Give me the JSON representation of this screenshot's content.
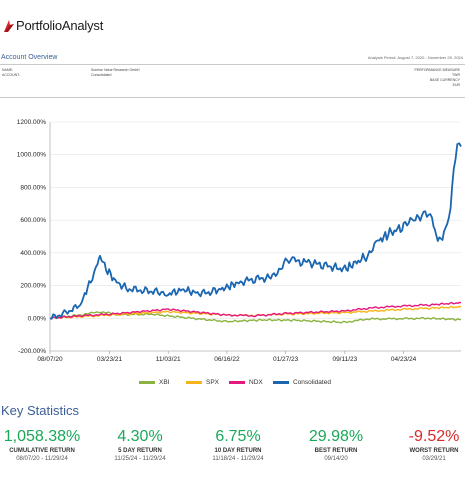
{
  "header": {
    "brand": "PortfolioAnalyst"
  },
  "overview": {
    "title": "Account Overview",
    "analysis_period": "Analysis Period: August 7, 2020 - November 29, 2024"
  },
  "account_info": {
    "name_label": "NAME:",
    "name_value": "Sunrise Value Research GmbH",
    "account_label": "ACCOUNT:",
    "account_value": "Consolidated",
    "measure_label": "PERFORMANCE MEASURE",
    "measure_value": "TWR",
    "currency_label": "BASE CURRENCY",
    "currency_value": "EUR"
  },
  "colors": {
    "XBI": "#8ab33f",
    "SPX": "#f6b41a",
    "NDX": "#e6177d",
    "Consolidated": "#1a66b0",
    "positive": "#1aa85a",
    "negative": "#d92b2b",
    "accent": "#3b5e95"
  },
  "chart_data": {
    "type": "line",
    "x_ticks": [
      "08/07/20",
      "03/23/21",
      "11/03/21",
      "06/16/22",
      "01/27/23",
      "09/11/23",
      "04/23/24"
    ],
    "y_ticks": [
      "1200.00%",
      "1000.00%",
      "800.00%",
      "600.00%",
      "400.00%",
      "200.00%",
      "0.00%",
      "-200.00%"
    ],
    "ylim": [
      -200,
      1200
    ],
    "x_range": [
      "2020-08-07",
      "2024-11-29"
    ],
    "grid": "horizontal",
    "legend_position": "bottom",
    "series": [
      {
        "name": "XBI",
        "x": [
          "2020-08-07",
          "2020-12-01",
          "2021-02-15",
          "2021-05-01",
          "2021-09-01",
          "2022-01-01",
          "2022-06-16",
          "2022-11-01",
          "2023-03-01",
          "2023-09-11",
          "2023-12-01",
          "2024-04-23",
          "2024-08-01",
          "2024-11-29"
        ],
        "values": [
          0,
          20,
          40,
          22,
          25,
          5,
          -20,
          -10,
          -12,
          -25,
          -5,
          -2,
          0,
          -8
        ]
      },
      {
        "name": "SPX",
        "x": [
          "2020-08-07",
          "2020-12-01",
          "2021-03-23",
          "2021-11-03",
          "2022-06-16",
          "2022-10-01",
          "2023-01-27",
          "2023-09-11",
          "2024-01-01",
          "2024-04-23",
          "2024-08-01",
          "2024-11-29"
        ],
        "values": [
          0,
          10,
          20,
          40,
          20,
          18,
          25,
          35,
          45,
          55,
          62,
          70
        ]
      },
      {
        "name": "NDX",
        "x": [
          "2020-08-07",
          "2020-12-01",
          "2021-03-23",
          "2021-11-03",
          "2022-06-16",
          "2022-10-01",
          "2023-01-27",
          "2023-09-11",
          "2024-01-01",
          "2024-04-23",
          "2024-08-01",
          "2024-11-29"
        ],
        "values": [
          0,
          15,
          25,
          55,
          20,
          15,
          30,
          45,
          65,
          75,
          82,
          95
        ]
      },
      {
        "name": "Consolidated",
        "x": [
          "2020-08-07",
          "2020-10-01",
          "2020-12-01",
          "2021-01-10",
          "2021-02-05",
          "2021-02-15",
          "2021-03-10",
          "2021-04-20",
          "2021-06-01",
          "2021-08-01",
          "2021-10-01",
          "2021-11-03",
          "2022-01-01",
          "2022-03-01",
          "2022-05-01",
          "2022-06-16",
          "2022-08-01",
          "2022-10-01",
          "2022-12-01",
          "2023-01-27",
          "2023-03-01",
          "2023-05-01",
          "2023-07-01",
          "2023-09-11",
          "2023-10-15",
          "2023-12-01",
          "2024-01-15",
          "2024-03-01",
          "2024-04-23",
          "2024-06-01",
          "2024-07-15",
          "2024-08-10",
          "2024-09-01",
          "2024-10-01",
          "2024-10-20",
          "2024-11-01",
          "2024-11-15",
          "2024-11-29"
        ],
        "values": [
          0,
          30,
          80,
          230,
          340,
          380,
          300,
          220,
          180,
          170,
          160,
          150,
          175,
          150,
          165,
          190,
          220,
          240,
          250,
          340,
          350,
          340,
          320,
          300,
          330,
          380,
          470,
          520,
          560,
          590,
          660,
          600,
          480,
          520,
          680,
          920,
          1110,
          1050
        ]
      }
    ]
  },
  "key_statistics": {
    "title": "Key Statistics",
    "items": [
      {
        "value": "1,058.38%",
        "label": "CUMULATIVE RETURN",
        "period": "08/07/20 - 11/29/24",
        "tone": "positive"
      },
      {
        "value": "4.30%",
        "label": "5 DAY RETURN",
        "period": "11/25/24 - 11/29/24",
        "tone": "positive"
      },
      {
        "value": "6.75%",
        "label": "10 DAY RETURN",
        "period": "11/18/24 - 11/29/24",
        "tone": "positive"
      },
      {
        "value": "29.98%",
        "label": "BEST RETURN",
        "period": "09/14/20",
        "tone": "positive"
      },
      {
        "value": "-9.52%",
        "label": "WORST RETURN",
        "period": "03/29/21",
        "tone": "negative"
      }
    ]
  }
}
